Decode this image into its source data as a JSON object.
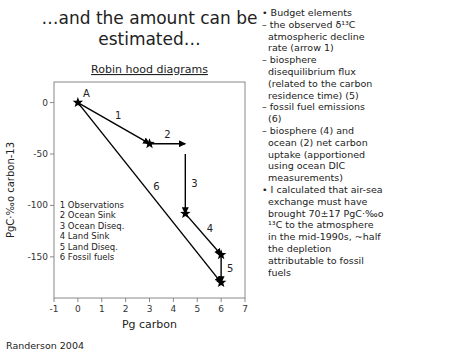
{
  "chart_data": {
    "type": "arrows",
    "title": "…and the amount can be\nestimated…",
    "subtitle": "Robin hood diagrams",
    "xlabel": "Pg carbon",
    "ylabel": "PgC·‰o carbon-13",
    "xlim": [
      -1,
      7
    ],
    "ylim": [
      -190,
      20
    ],
    "xticks": [
      -1,
      0,
      1,
      2,
      3,
      4,
      5,
      6,
      7
    ],
    "yticks": [
      0,
      -50,
      -100,
      -150
    ],
    "color": "#000000",
    "series": [
      {
        "name": "1",
        "x": [
          0,
          3
        ],
        "values": [
          0,
          -40
        ]
      },
      {
        "name": "6",
        "x": [
          0,
          6
        ],
        "values": [
          0,
          -175
        ]
      },
      {
        "name": "2",
        "x": [
          3,
          4.5
        ],
        "values": [
          -40,
          -40
        ]
      },
      {
        "name": "3",
        "x": [
          4.5,
          4.5
        ],
        "values": [
          -50,
          -108
        ]
      },
      {
        "name": "4",
        "x": [
          4.5,
          6
        ],
        "values": [
          -108,
          -148
        ]
      },
      {
        "name": "5",
        "x": [
          6,
          6
        ],
        "values": [
          -148,
          -175
        ]
      }
    ],
    "stars": {
      "x": [
        0,
        3,
        4.5,
        6,
        6
      ],
      "values": [
        0,
        -40,
        -108,
        -148,
        -175
      ]
    },
    "annotations": {
      "point_label": "A",
      "key": [
        "1 Observations",
        "2 Ocean Sink",
        "3 Ocean Diseq.",
        "4 Land Sink",
        "5 Land Diseq.",
        "6 Fossil fuels"
      ],
      "footer": "Randerson 2004",
      "notes": [
        "• Budget elements",
        "– the observed δ¹³C",
        "  atmospheric decline",
        "  rate (arrow 1)",
        "– biosphere",
        "  disequilibrium flux",
        "  (related to the carbon",
        "  residence time) (5)",
        "– fossil fuel emissions",
        "  (6)",
        "– biosphere (4) and",
        "  ocean (2) net carbon",
        "  uptake (apportioned",
        "  using ocean DIC",
        "  measurements)",
        "• I calculated that air-sea",
        "  exchange must have",
        "  brought 70±17 PgC·‰o",
        "  ¹³C to the atmosphere",
        "  in the mid-1990s, ~half",
        "  the depletion",
        "  attributable to fossil",
        "  fuels"
      ]
    }
  }
}
